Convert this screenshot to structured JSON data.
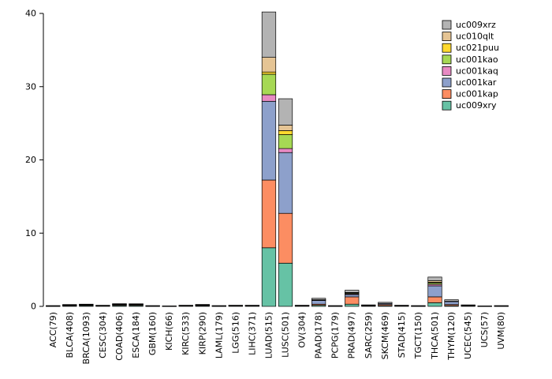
{
  "chart_data": {
    "type": "bar",
    "stacked": true,
    "title": "",
    "xlabel": "",
    "ylabel": "",
    "ylim": [
      0,
      40
    ],
    "yticks": [
      0,
      10,
      20,
      30,
      40
    ],
    "grid": false,
    "legend_position": "top-right",
    "categories": [
      "ACC(79)",
      "BLCA(408)",
      "BRCA(1093)",
      "CESC(304)",
      "COAD(406)",
      "ESCA(184)",
      "GBM(160)",
      "KICH(66)",
      "KIRC(533)",
      "KIRP(290)",
      "LAML(179)",
      "LGG(516)",
      "LIHC(371)",
      "LUAD(515)",
      "LUSC(501)",
      "OV(304)",
      "PAAD(178)",
      "PCPG(179)",
      "PRAD(497)",
      "SARC(259)",
      "SKCM(469)",
      "STAD(415)",
      "TGCT(150)",
      "THCA(501)",
      "THYM(120)",
      "UCEC(545)",
      "UCS(57)",
      "UVM(80)"
    ],
    "series": [
      {
        "name": "uc009xry",
        "color": "#66C2A5",
        "values": [
          0.03,
          0.08,
          0.1,
          0.05,
          0.12,
          0.12,
          0.03,
          0.02,
          0.05,
          0.08,
          0.03,
          0.05,
          0.05,
          8.0,
          5.9,
          0.05,
          0.15,
          0.03,
          0.3,
          0.07,
          0.1,
          0.05,
          0.03,
          0.5,
          0.1,
          0.07,
          0.02,
          0.03
        ]
      },
      {
        "name": "uc001kap",
        "color": "#FC8D62",
        "values": [
          0.03,
          0.07,
          0.08,
          0.04,
          0.1,
          0.1,
          0.03,
          0.01,
          0.04,
          0.07,
          0.03,
          0.04,
          0.04,
          9.25,
          6.8,
          0.04,
          0.15,
          0.03,
          1.0,
          0.05,
          0.15,
          0.04,
          0.03,
          0.8,
          0.15,
          0.05,
          0.01,
          0.03
        ]
      },
      {
        "name": "uc001kar",
        "color": "#8DA0CB",
        "values": [
          0.02,
          0.05,
          0.06,
          0.03,
          0.08,
          0.08,
          0.02,
          0.01,
          0.03,
          0.05,
          0.02,
          0.03,
          0.03,
          10.75,
          8.3,
          0.03,
          0.5,
          0.02,
          0.3,
          0.04,
          0.15,
          0.03,
          0.02,
          1.5,
          0.4,
          0.04,
          0.01,
          0.02
        ]
      },
      {
        "name": "uc001kaq",
        "color": "#E78AC3",
        "values": [
          0,
          0,
          0.01,
          0,
          0.01,
          0.01,
          0,
          0,
          0,
          0.01,
          0,
          0,
          0,
          0.9,
          0.55,
          0,
          0.05,
          0,
          0.1,
          0.01,
          0,
          0,
          0,
          0.2,
          0.05,
          0.01,
          0,
          0
        ]
      },
      {
        "name": "uc001kao",
        "color": "#A6D854",
        "values": [
          0,
          0.01,
          0.01,
          0,
          0.01,
          0.01,
          0,
          0,
          0.01,
          0.01,
          0,
          0.01,
          0.01,
          2.8,
          1.9,
          0.01,
          0.05,
          0,
          0.1,
          0.01,
          0,
          0.01,
          0,
          0.2,
          0,
          0.01,
          0,
          0
        ]
      },
      {
        "name": "uc021puu",
        "color": "#FFD92F",
        "values": [
          0,
          0,
          0,
          0,
          0,
          0,
          0,
          0,
          0,
          0,
          0,
          0,
          0,
          0.3,
          0.55,
          0,
          0,
          0,
          0.05,
          0,
          0,
          0,
          0,
          0.1,
          0,
          0,
          0,
          0
        ]
      },
      {
        "name": "uc010qlt",
        "color": "#E5C494",
        "values": [
          0,
          0.01,
          0.01,
          0,
          0.01,
          0.01,
          0,
          0,
          0,
          0.01,
          0,
          0,
          0,
          2.0,
          0.75,
          0,
          0,
          0,
          0.05,
          0,
          0,
          0,
          0,
          0.2,
          0,
          0,
          0,
          0
        ]
      },
      {
        "name": "uc009xrz",
        "color": "#B3B3B3",
        "values": [
          0.02,
          0.03,
          0.03,
          0.03,
          0.03,
          0.02,
          0.02,
          0.01,
          0.02,
          0.03,
          0.02,
          0.02,
          0.02,
          6.2,
          3.6,
          0.02,
          0.2,
          0.02,
          0.3,
          0.02,
          0.15,
          0.02,
          0.02,
          0.5,
          0.2,
          0.02,
          0.01,
          0.02
        ]
      }
    ],
    "legend_entries_top_to_bottom": [
      "uc009xrz",
      "uc010qlt",
      "uc021puu",
      "uc001kao",
      "uc001kaq",
      "uc001kar",
      "uc001kap",
      "uc009xry"
    ]
  },
  "style": {
    "axis_color": "#000000",
    "bar_border_color": "#000000",
    "background": "#ffffff"
  }
}
